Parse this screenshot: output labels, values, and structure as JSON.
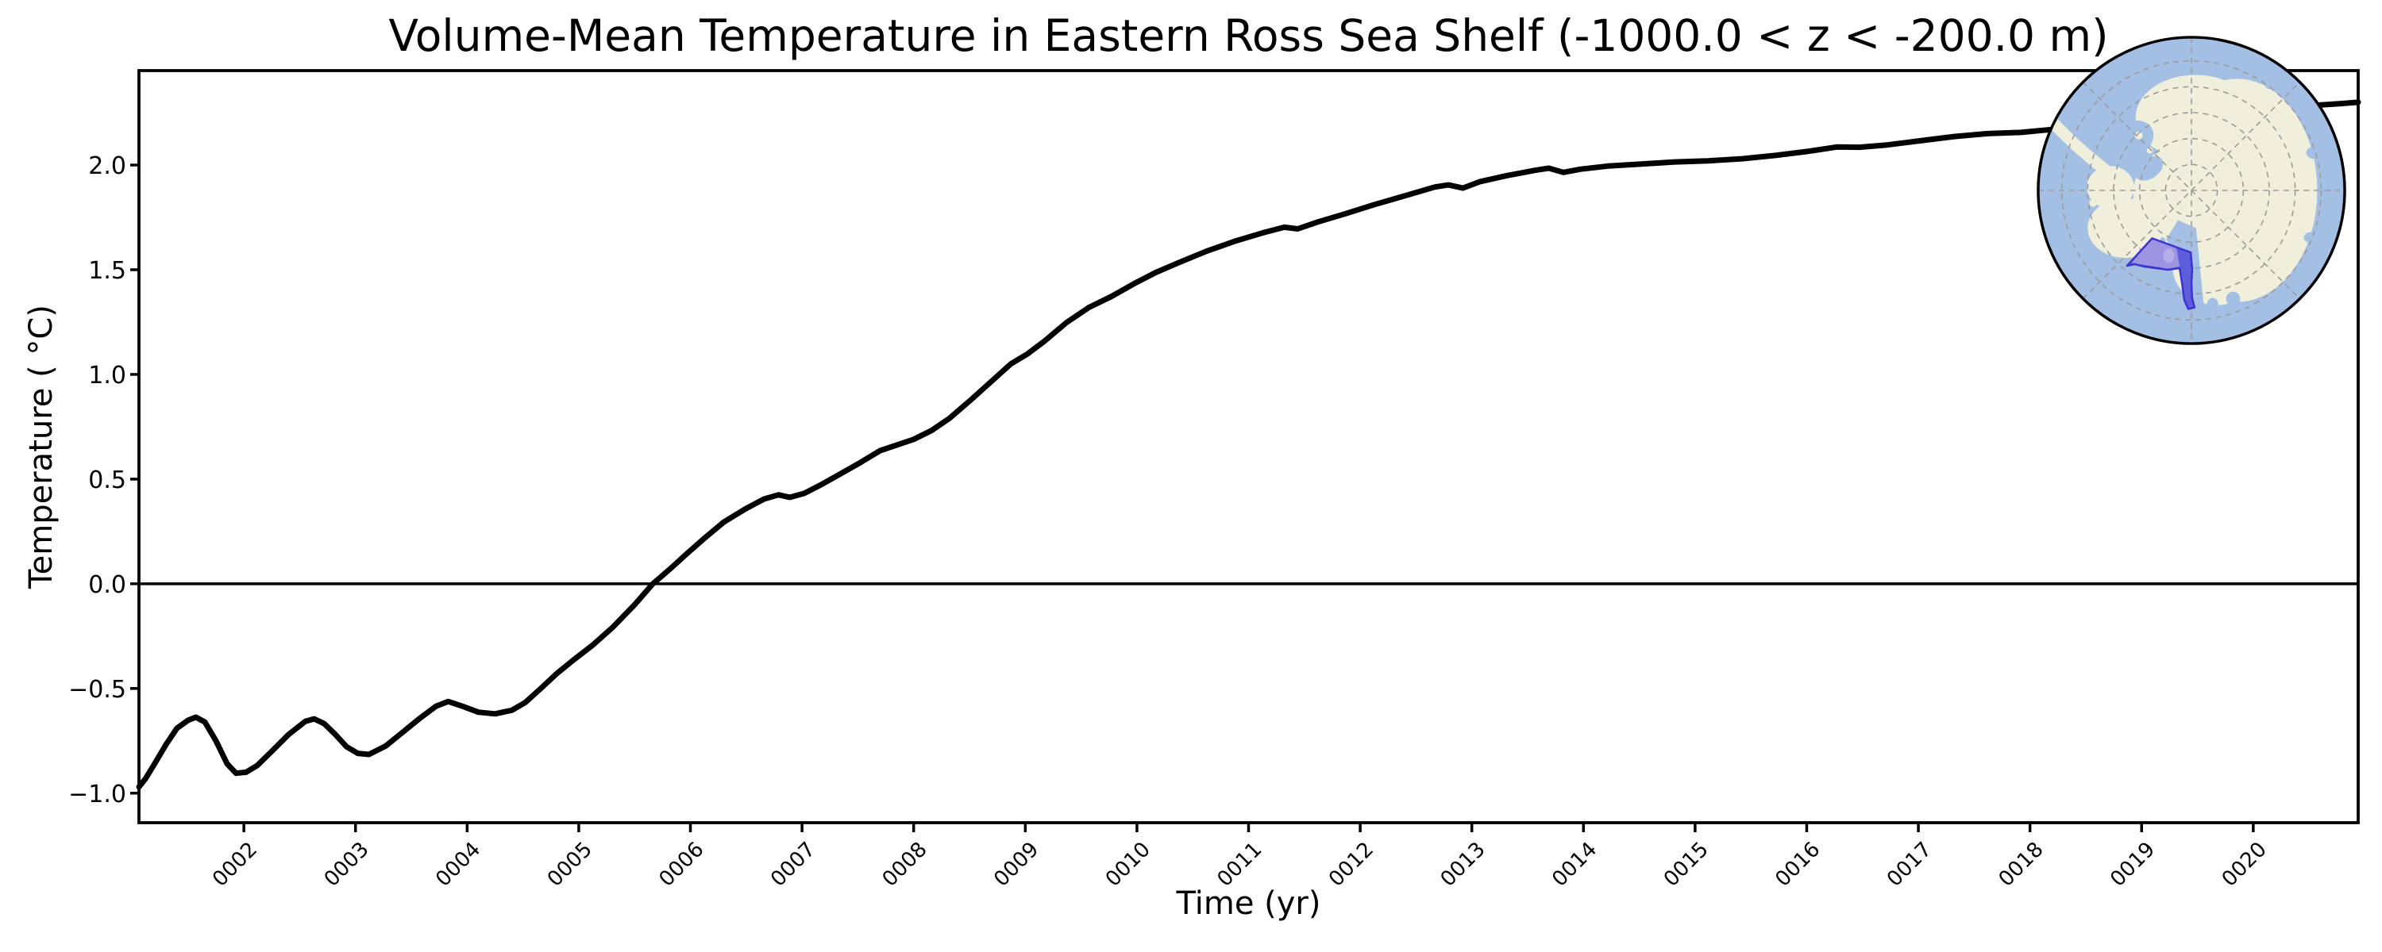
{
  "figure": {
    "title": "Volume-Mean Temperature in Eastern Ross Sea Shelf (-1000.0 < z < -200.0 m)",
    "xlabel": "Time (yr)",
    "ylabel": "Temperature ( °C)",
    "background": "#ffffff"
  },
  "chart_data": {
    "type": "line",
    "title": "Volume-Mean Temperature in Eastern Ross Sea Shelf (-1000.0 < z < -200.0 m)",
    "xlabel": "Time (yr)",
    "ylabel": "Temperature ( °C)",
    "grid": false,
    "axis_color": "#000000",
    "zero_line": 0.0,
    "xlim": [
      1.06,
      20.94
    ],
    "ylim": [
      -1.141,
      2.451
    ],
    "x_ticks": [
      "0002",
      "0003",
      "0004",
      "0005",
      "0006",
      "0007",
      "0008",
      "0009",
      "0010",
      "0011",
      "0012",
      "0013",
      "0014",
      "0015",
      "0016",
      "0017",
      "0018",
      "0019",
      "0020"
    ],
    "x_tick_years": [
      2,
      3,
      4,
      5,
      6,
      7,
      8,
      9,
      10,
      11,
      12,
      13,
      14,
      15,
      16,
      17,
      18,
      19,
      20
    ],
    "y_ticks": [
      2.0,
      1.5,
      1.0,
      0.5,
      0.0,
      -0.5,
      -1.0
    ],
    "y_tick_labels": [
      "2.0",
      "1.5",
      "1.0",
      "0.5",
      "0.0",
      "−0.5",
      "−1.0"
    ],
    "series": [
      {
        "name": "volume-mean temperature",
        "color": "#000000",
        "points": [
          [
            1.06,
            -0.97
          ],
          [
            1.12,
            -0.93
          ],
          [
            1.2,
            -0.86
          ],
          [
            1.3,
            -0.77
          ],
          [
            1.4,
            -0.69
          ],
          [
            1.5,
            -0.652
          ],
          [
            1.57,
            -0.637
          ],
          [
            1.65,
            -0.66
          ],
          [
            1.75,
            -0.75
          ],
          [
            1.85,
            -0.86
          ],
          [
            1.93,
            -0.905
          ],
          [
            2.02,
            -0.9
          ],
          [
            2.12,
            -0.868
          ],
          [
            2.25,
            -0.8
          ],
          [
            2.4,
            -0.72
          ],
          [
            2.55,
            -0.657
          ],
          [
            2.63,
            -0.645
          ],
          [
            2.72,
            -0.668
          ],
          [
            2.82,
            -0.72
          ],
          [
            2.92,
            -0.778
          ],
          [
            3.02,
            -0.81
          ],
          [
            3.12,
            -0.815
          ],
          [
            3.27,
            -0.775
          ],
          [
            3.42,
            -0.71
          ],
          [
            3.57,
            -0.645
          ],
          [
            3.72,
            -0.585
          ],
          [
            3.83,
            -0.562
          ],
          [
            3.96,
            -0.585
          ],
          [
            4.1,
            -0.613
          ],
          [
            4.25,
            -0.621
          ],
          [
            4.4,
            -0.604
          ],
          [
            4.52,
            -0.567
          ],
          [
            4.66,
            -0.5
          ],
          [
            4.8,
            -0.43
          ],
          [
            4.95,
            -0.365
          ],
          [
            5.12,
            -0.295
          ],
          [
            5.3,
            -0.21
          ],
          [
            5.5,
            -0.1
          ],
          [
            5.66,
            -0.002
          ],
          [
            5.82,
            0.072
          ],
          [
            5.96,
            0.14
          ],
          [
            6.12,
            0.215
          ],
          [
            6.3,
            0.295
          ],
          [
            6.5,
            0.36
          ],
          [
            6.66,
            0.405
          ],
          [
            6.79,
            0.425
          ],
          [
            6.89,
            0.413
          ],
          [
            7.02,
            0.432
          ],
          [
            7.16,
            0.47
          ],
          [
            7.32,
            0.518
          ],
          [
            7.52,
            0.578
          ],
          [
            7.7,
            0.636
          ],
          [
            7.86,
            0.665
          ],
          [
            8.0,
            0.69
          ],
          [
            8.16,
            0.732
          ],
          [
            8.32,
            0.79
          ],
          [
            8.52,
            0.882
          ],
          [
            8.72,
            0.978
          ],
          [
            8.87,
            1.05
          ],
          [
            9.02,
            1.098
          ],
          [
            9.17,
            1.158
          ],
          [
            9.37,
            1.248
          ],
          [
            9.57,
            1.32
          ],
          [
            9.77,
            1.372
          ],
          [
            9.97,
            1.432
          ],
          [
            10.17,
            1.487
          ],
          [
            10.37,
            1.533
          ],
          [
            10.62,
            1.588
          ],
          [
            10.87,
            1.635
          ],
          [
            11.12,
            1.675
          ],
          [
            11.32,
            1.703
          ],
          [
            11.44,
            1.695
          ],
          [
            11.62,
            1.728
          ],
          [
            11.87,
            1.768
          ],
          [
            12.12,
            1.81
          ],
          [
            12.42,
            1.856
          ],
          [
            12.67,
            1.895
          ],
          [
            12.79,
            1.905
          ],
          [
            12.92,
            1.89
          ],
          [
            13.07,
            1.92
          ],
          [
            13.32,
            1.95
          ],
          [
            13.57,
            1.975
          ],
          [
            13.69,
            1.985
          ],
          [
            13.82,
            1.965
          ],
          [
            13.97,
            1.98
          ],
          [
            14.22,
            1.995
          ],
          [
            14.52,
            2.005
          ],
          [
            14.82,
            2.015
          ],
          [
            15.12,
            2.02
          ],
          [
            15.42,
            2.03
          ],
          [
            15.72,
            2.046
          ],
          [
            16.02,
            2.066
          ],
          [
            16.27,
            2.086
          ],
          [
            16.47,
            2.085
          ],
          [
            16.72,
            2.096
          ],
          [
            17.02,
            2.116
          ],
          [
            17.32,
            2.136
          ],
          [
            17.62,
            2.15
          ],
          [
            17.92,
            2.156
          ],
          [
            18.12,
            2.166
          ],
          [
            18.42,
            2.18
          ],
          [
            18.72,
            2.196
          ],
          [
            19.02,
            2.21
          ],
          [
            19.32,
            2.226
          ],
          [
            19.62,
            2.24
          ],
          [
            19.92,
            2.256
          ],
          [
            20.22,
            2.27
          ],
          [
            20.52,
            2.284
          ],
          [
            20.77,
            2.293
          ],
          [
            20.94,
            2.3
          ]
        ]
      }
    ]
  },
  "inset_map": {
    "ocean_color": "#a4bfe4",
    "land_color": "#f0efdb",
    "graticule_color": "#9a9a9a",
    "region_fill_ocean": "#5e5edc",
    "region_fill_land": "#9d95e1",
    "region_fill_light": "#b6aeea",
    "region_outline": "#3b34d1",
    "border_color": "#000000"
  }
}
